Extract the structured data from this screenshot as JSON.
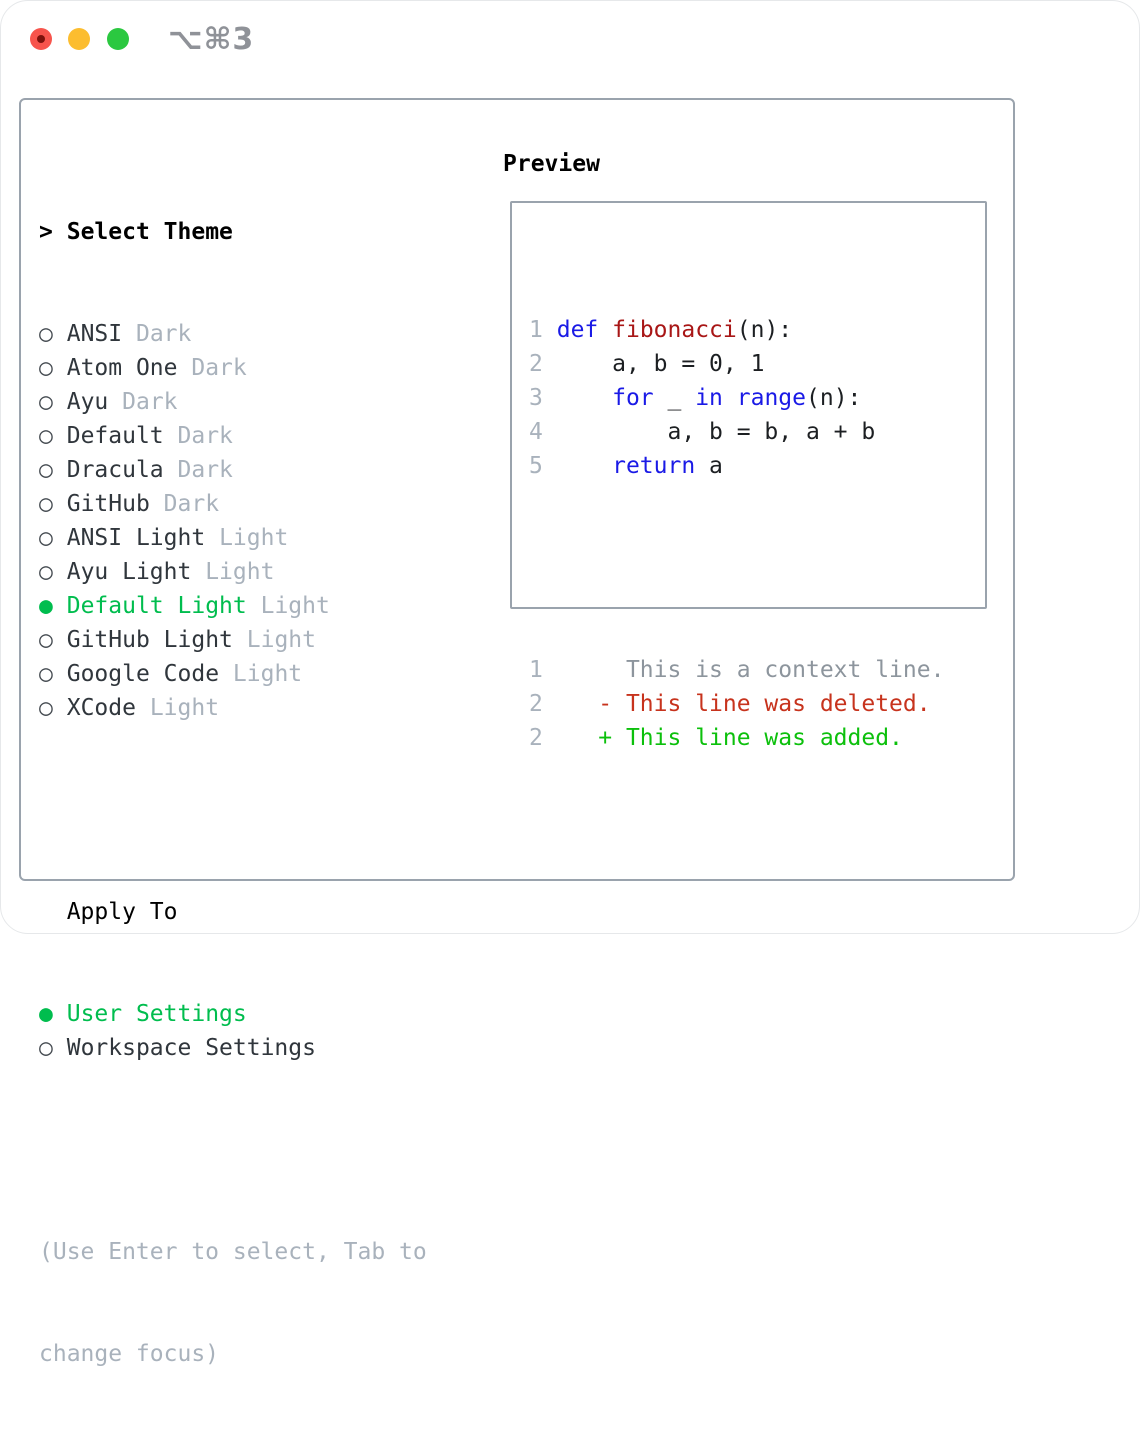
{
  "window": {
    "shortcut_label": "⌥⌘3",
    "traffic_lights": [
      "close",
      "minimize",
      "zoom"
    ]
  },
  "colors": {
    "border_gray": "#9aa3ad",
    "selection_green": "#00bd4e",
    "keyword_blue": "#1a1ae6",
    "function_red": "#a81616",
    "diff_deleted_red": "#c7331d",
    "diff_added_green": "#0cc00c",
    "muted_gray": "#a9b2bc",
    "context_gray": "#8d959d"
  },
  "theme_panel": {
    "title_prefix": ">",
    "title": "Select Theme",
    "themes": [
      {
        "name": "ANSI",
        "tag": "Dark",
        "selected": false
      },
      {
        "name": "Atom One",
        "tag": "Dark",
        "selected": false
      },
      {
        "name": "Ayu",
        "tag": "Dark",
        "selected": false
      },
      {
        "name": "Default",
        "tag": "Dark",
        "selected": false
      },
      {
        "name": "Dracula",
        "tag": "Dark",
        "selected": false
      },
      {
        "name": "GitHub",
        "tag": "Dark",
        "selected": false
      },
      {
        "name": "ANSI Light",
        "tag": "Light",
        "selected": false
      },
      {
        "name": "Ayu Light",
        "tag": "Light",
        "selected": false
      },
      {
        "name": "Default Light",
        "tag": "Light",
        "selected": true
      },
      {
        "name": "GitHub Light",
        "tag": "Light",
        "selected": false
      },
      {
        "name": "Google Code",
        "tag": "Light",
        "selected": false
      },
      {
        "name": "XCode",
        "tag": "Light",
        "selected": false
      }
    ],
    "apply_to": {
      "title": "Apply To",
      "options": [
        {
          "label": "User Settings",
          "selected": true
        },
        {
          "label": "Workspace Settings",
          "selected": false
        }
      ]
    },
    "help_lines": [
      "(Use Enter to select, Tab to",
      "change focus)"
    ]
  },
  "preview": {
    "title": "Preview",
    "code_lines": [
      {
        "num": "1",
        "tokens": [
          {
            "text": "def",
            "style": "keyword"
          },
          {
            "text": " ",
            "style": "plain"
          },
          {
            "text": "fibonacci",
            "style": "function"
          },
          {
            "text": "(n):",
            "style": "plain"
          }
        ]
      },
      {
        "num": "2",
        "tokens": [
          {
            "text": "    a, b = 0, 1",
            "style": "plain"
          }
        ]
      },
      {
        "num": "3",
        "tokens": [
          {
            "text": "    ",
            "style": "plain"
          },
          {
            "text": "for",
            "style": "keyword"
          },
          {
            "text": " _ ",
            "style": "plain"
          },
          {
            "text": "in",
            "style": "keyword"
          },
          {
            "text": " ",
            "style": "plain"
          },
          {
            "text": "range",
            "style": "keyword"
          },
          {
            "text": "(n):",
            "style": "plain"
          }
        ]
      },
      {
        "num": "4",
        "tokens": [
          {
            "text": "        a, b = b, a + b",
            "style": "plain"
          }
        ]
      },
      {
        "num": "5",
        "tokens": [
          {
            "text": "    ",
            "style": "plain"
          },
          {
            "text": "return",
            "style": "keyword"
          },
          {
            "text": " a",
            "style": "plain"
          }
        ]
      }
    ],
    "diff_lines": [
      {
        "num": "1",
        "text": "     This is a context line.",
        "style": "context"
      },
      {
        "num": "2",
        "text": "   - This line was deleted.",
        "style": "deleted"
      },
      {
        "num": "2",
        "text": "   + This line was added.",
        "style": "added"
      }
    ]
  }
}
